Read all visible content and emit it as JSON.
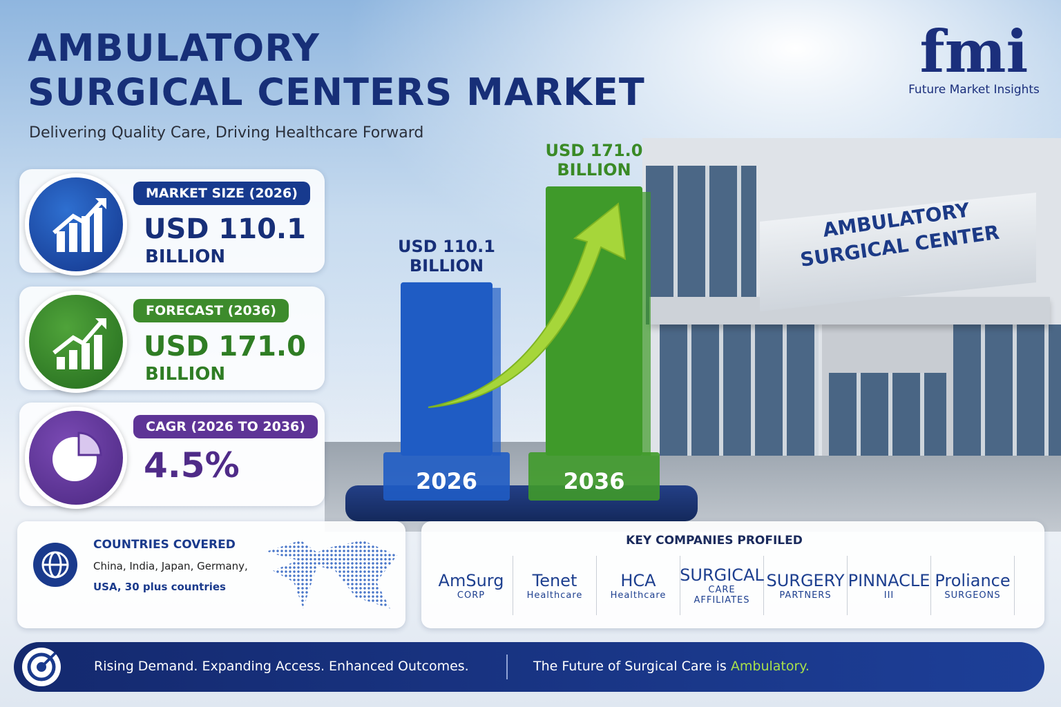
{
  "header": {
    "title_lines": [
      "AMBULATORY",
      "SURGICAL CENTERS MARKET"
    ],
    "subtitle": "Delivering Quality Care, Driving Healthcare Forward"
  },
  "logo": {
    "mark": "fmi",
    "name": "Future Market Insights"
  },
  "stats": [
    {
      "label": "MARKET SIZE (2026)",
      "value": "USD 110.1",
      "unit": "BILLION"
    },
    {
      "label": "FORECAST (2036)",
      "value": "USD 171.0",
      "unit": "BILLION"
    },
    {
      "label": "CAGR (2026 TO 2036)",
      "value": "4.5%"
    }
  ],
  "chart_data": {
    "type": "bar",
    "categories": [
      "2026",
      "2036"
    ],
    "values": [
      110.1,
      171.0
    ],
    "value_labels": [
      "USD 110.1 BILLION",
      "USD 171.0 BILLION"
    ],
    "colors": [
      "#1f5cc4",
      "#3f9a2a"
    ]
  },
  "building_sign": [
    "AMBULATORY",
    "SURGICAL CENTER"
  ],
  "countries": {
    "title": "COUNTRIES COVERED",
    "lines": [
      "China, India, Japan, Germany,",
      "USA, 30 plus countries"
    ]
  },
  "companies": {
    "title": "KEY COMPANIES PROFILED",
    "items": [
      [
        "AmSurg",
        "CORP"
      ],
      [
        "Tenet",
        "Healthcare"
      ],
      [
        "HCA",
        "Healthcare"
      ],
      [
        "SURGICAL",
        "CARE",
        "AFFILIATES"
      ],
      [
        "SURGERY",
        "PARTNERS"
      ],
      [
        "PINNACLE",
        "III"
      ],
      [
        "Proliance",
        "SURGEONS"
      ]
    ]
  },
  "footer": {
    "left": "Rising Demand. Expanding Access. Enhanced Outcomes.",
    "right": "The Future of Surgical Care is",
    "highlight": "Ambulatory."
  }
}
